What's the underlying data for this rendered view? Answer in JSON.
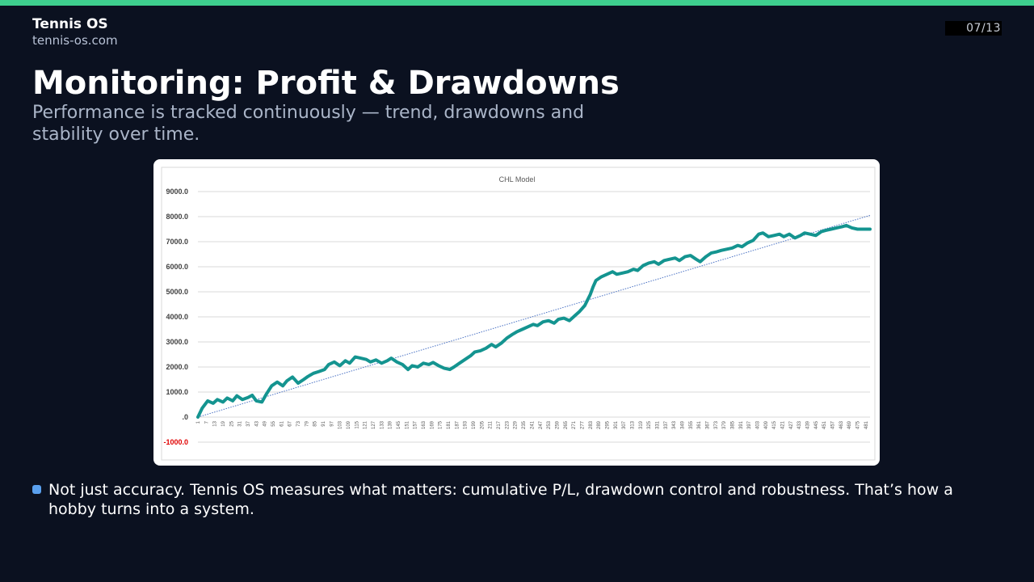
{
  "header": {
    "brand_name": "Tennis OS",
    "brand_url": "tennis-os.com",
    "page_counter": "07/13"
  },
  "slide": {
    "title": "Monitoring: Profit & Drawdowns",
    "subtitle": "Performance is tracked continuously — trend, drawdowns and stability over time.",
    "bullet": "Not just accuracy. Tennis OS measures what matters: cumulative P/L, drawdown control and robustness. That’s how a hobby turns into a system."
  },
  "colors": {
    "accent_bar": "#3ecf8e",
    "background": "#0b1120",
    "bullet_marker": "#5aa0ee",
    "series_line": "#149490",
    "trendline": "#4a72c4",
    "negative_tick": "#e00000"
  },
  "chart_data": {
    "type": "line",
    "title": "CHL Model",
    "xlabel": "",
    "ylabel": "",
    "ylim": [
      -1000,
      9000
    ],
    "xlim": [
      1,
      484
    ],
    "y_ticks": [
      {
        "value": 9000,
        "label": "9000.0"
      },
      {
        "value": 8000,
        "label": "8000.0"
      },
      {
        "value": 7000,
        "label": "7000.0"
      },
      {
        "value": 6000,
        "label": "6000.0"
      },
      {
        "value": 5000,
        "label": "5000.0"
      },
      {
        "value": 4000,
        "label": "4000.0"
      },
      {
        "value": 3000,
        "label": "3000.0"
      },
      {
        "value": 2000,
        "label": "2000.0"
      },
      {
        "value": 1000,
        "label": "1000.0"
      },
      {
        "value": 0,
        "label": ".0"
      },
      {
        "value": -1000,
        "label": "-1000.0"
      }
    ],
    "x_ticks": [
      "1",
      "7",
      "13",
      "19",
      "25",
      "31",
      "37",
      "43",
      "49",
      "55",
      "61",
      "67",
      "73",
      "79",
      "85",
      "91",
      "97",
      "103",
      "109",
      "115",
      "121",
      "127",
      "133",
      "139",
      "145",
      "151",
      "157",
      "163",
      "169",
      "175",
      "181",
      "187",
      "193",
      "199",
      "205",
      "211",
      "217",
      "223",
      "229",
      "235",
      "241",
      "247",
      "253",
      "259",
      "265",
      "271",
      "277",
      "283",
      "289",
      "295",
      "301",
      "307",
      "313",
      "319",
      "325",
      "331",
      "337",
      "343",
      "349",
      "355",
      "361",
      "367",
      "373",
      "379",
      "385",
      "391",
      "397",
      "403",
      "409",
      "415",
      "421",
      "427",
      "433",
      "439",
      "445",
      "451",
      "457",
      "463",
      "469",
      "475",
      "481"
    ],
    "grid": true,
    "series": [
      {
        "x": [
          1,
          4,
          8,
          12,
          15,
          19,
          22,
          26,
          29,
          33,
          37,
          40,
          43,
          47,
          50,
          54,
          58,
          62,
          65,
          69,
          73,
          77,
          80,
          84,
          88,
          92,
          95,
          99,
          103,
          107,
          110,
          114,
          118,
          122,
          125,
          129,
          133,
          137,
          140,
          144,
          148,
          152,
          155,
          159,
          163,
          167,
          170,
          174,
          178,
          182,
          185,
          189,
          193,
          197,
          200,
          204,
          208,
          212,
          215,
          219,
          223,
          227,
          230,
          234,
          238,
          242,
          245,
          249,
          253,
          257,
          260,
          264,
          268,
          272,
          275,
          279,
          283,
          285,
          287,
          291,
          295,
          299,
          302,
          306,
          310,
          314,
          317,
          321,
          325,
          329,
          332,
          336,
          340,
          344,
          347,
          351,
          355,
          359,
          362,
          366,
          370,
          374,
          377,
          381,
          385,
          389,
          392,
          396,
          400,
          404,
          407,
          411,
          415,
          419,
          422,
          426,
          430,
          434,
          437,
          441,
          445,
          449,
          452,
          456,
          460,
          464,
          467,
          471,
          475,
          479,
          484
        ],
        "y": [
          0,
          350,
          650,
          550,
          700,
          600,
          760,
          650,
          850,
          700,
          780,
          870,
          650,
          600,
          900,
          1250,
          1400,
          1250,
          1450,
          1600,
          1350,
          1500,
          1620,
          1750,
          1820,
          1900,
          2100,
          2200,
          2050,
          2250,
          2150,
          2400,
          2350,
          2300,
          2200,
          2280,
          2150,
          2250,
          2350,
          2200,
          2100,
          1900,
          2050,
          2000,
          2150,
          2100,
          2180,
          2050,
          1950,
          1900,
          2000,
          2150,
          2300,
          2450,
          2600,
          2650,
          2750,
          2900,
          2800,
          2950,
          3150,
          3300,
          3400,
          3500,
          3600,
          3700,
          3650,
          3800,
          3850,
          3750,
          3900,
          3950,
          3850,
          4050,
          4200,
          4450,
          4900,
          5200,
          5450,
          5600,
          5700,
          5800,
          5700,
          5750,
          5800,
          5900,
          5850,
          6050,
          6150,
          6200,
          6100,
          6250,
          6300,
          6350,
          6250,
          6400,
          6450,
          6300,
          6200,
          6400,
          6550,
          6600,
          6650,
          6700,
          6750,
          6850,
          6800,
          6950,
          7050,
          7300,
          7350,
          7200,
          7250,
          7300,
          7200,
          7300,
          7150,
          7250,
          7350,
          7300,
          7250,
          7400,
          7450,
          7500,
          7550,
          7600,
          7650,
          7550,
          7500,
          7500,
          7500
        ]
      },
      {
        "x": [
          1,
          484
        ],
        "y": [
          0,
          8050
        ]
      }
    ]
  }
}
